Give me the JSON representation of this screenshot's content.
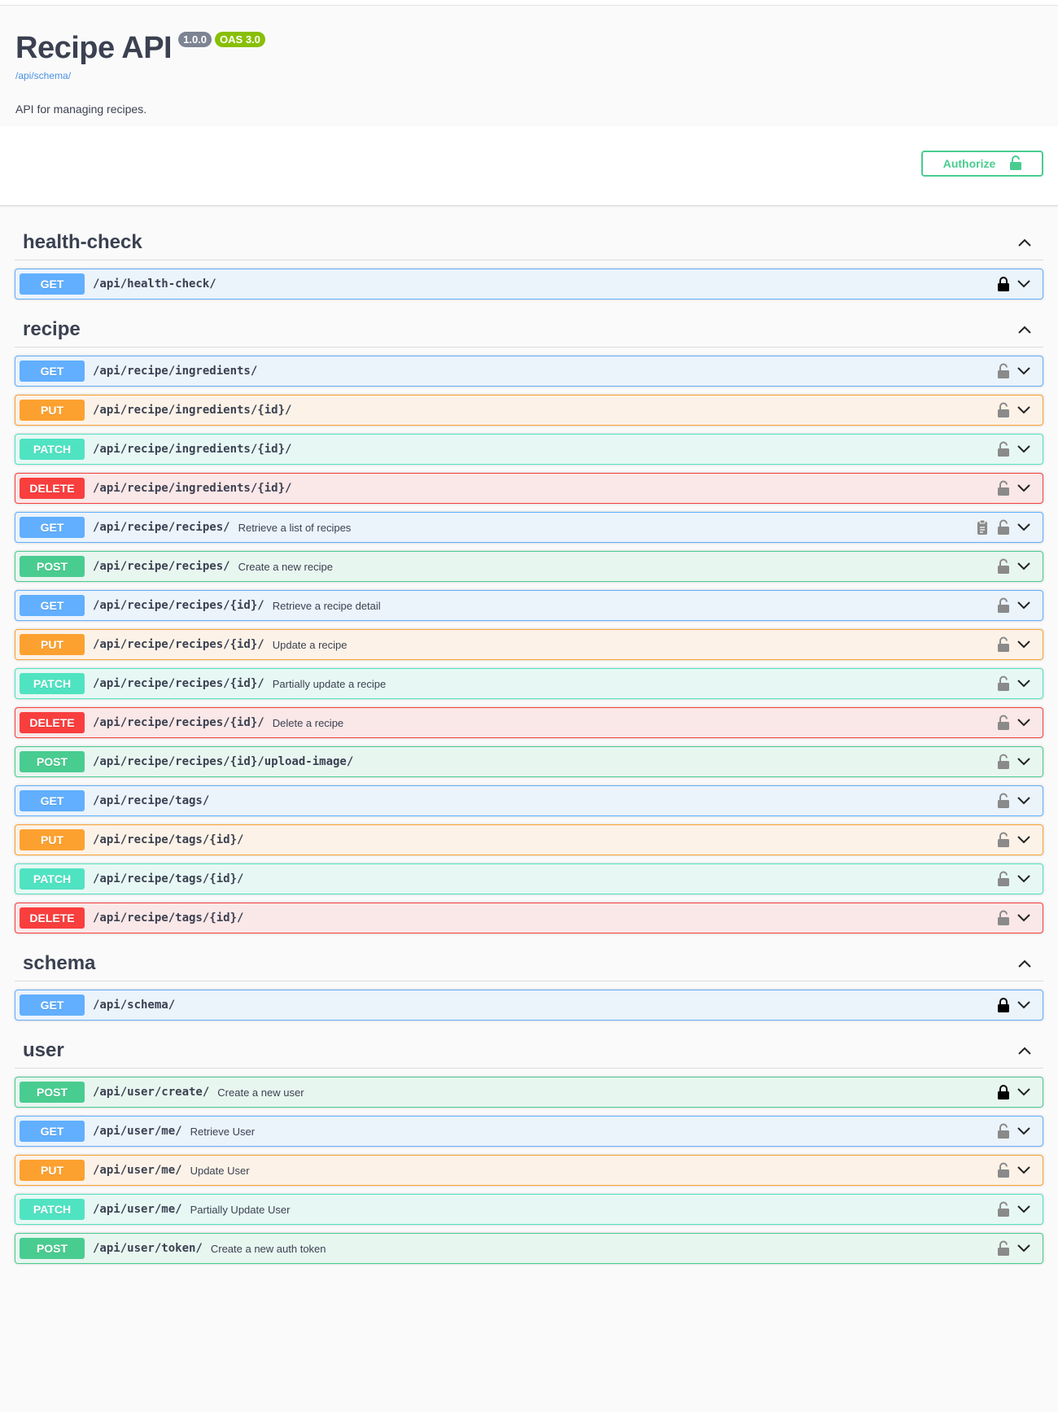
{
  "info": {
    "title": "Recipe API",
    "version": "1.0.0",
    "oas": "OAS 3.0",
    "url": "/api/schema/",
    "description": "API for managing recipes."
  },
  "authorize_label": "Authorize",
  "colors": {
    "get": "#61affe",
    "put": "#fca130",
    "post": "#49cc90",
    "patch": "#50e3c2",
    "delete": "#f93e3e"
  },
  "tags": [
    {
      "name": "health-check",
      "ops": [
        {
          "method": "GET",
          "cls": "get",
          "path": "/api/health-check/",
          "summary": "",
          "locked": true
        }
      ]
    },
    {
      "name": "recipe",
      "ops": [
        {
          "method": "GET",
          "cls": "get",
          "path": "/api/recipe/ingredients/",
          "summary": "",
          "locked": false
        },
        {
          "method": "PUT",
          "cls": "put",
          "path": "/api/recipe/ingredients/{id}/",
          "summary": "",
          "locked": false
        },
        {
          "method": "PATCH",
          "cls": "patch",
          "path": "/api/recipe/ingredients/{id}/",
          "summary": "",
          "locked": false
        },
        {
          "method": "DELETE",
          "cls": "delete",
          "path": "/api/recipe/ingredients/{id}/",
          "summary": "",
          "locked": false
        },
        {
          "method": "GET",
          "cls": "get",
          "path": "/api/recipe/recipes/",
          "summary": "Retrieve a list of recipes",
          "locked": false,
          "copy": true
        },
        {
          "method": "POST",
          "cls": "post",
          "path": "/api/recipe/recipes/",
          "summary": "Create a new recipe",
          "locked": false
        },
        {
          "method": "GET",
          "cls": "get",
          "path": "/api/recipe/recipes/{id}/",
          "summary": "Retrieve a recipe detail",
          "locked": false
        },
        {
          "method": "PUT",
          "cls": "put",
          "path": "/api/recipe/recipes/{id}/",
          "summary": "Update a recipe",
          "locked": false
        },
        {
          "method": "PATCH",
          "cls": "patch",
          "path": "/api/recipe/recipes/{id}/",
          "summary": "Partially update a recipe",
          "locked": false
        },
        {
          "method": "DELETE",
          "cls": "delete",
          "path": "/api/recipe/recipes/{id}/",
          "summary": "Delete a recipe",
          "locked": false
        },
        {
          "method": "POST",
          "cls": "post",
          "path": "/api/recipe/recipes/{id}/upload-image/",
          "summary": "",
          "locked": false
        },
        {
          "method": "GET",
          "cls": "get",
          "path": "/api/recipe/tags/",
          "summary": "",
          "locked": false
        },
        {
          "method": "PUT",
          "cls": "put",
          "path": "/api/recipe/tags/{id}/",
          "summary": "",
          "locked": false
        },
        {
          "method": "PATCH",
          "cls": "patch",
          "path": "/api/recipe/tags/{id}/",
          "summary": "",
          "locked": false
        },
        {
          "method": "DELETE",
          "cls": "delete",
          "path": "/api/recipe/tags/{id}/",
          "summary": "",
          "locked": false
        }
      ]
    },
    {
      "name": "schema",
      "ops": [
        {
          "method": "GET",
          "cls": "get",
          "path": "/api/schema/",
          "summary": "",
          "locked": true
        }
      ]
    },
    {
      "name": "user",
      "ops": [
        {
          "method": "POST",
          "cls": "post",
          "path": "/api/user/create/",
          "summary": "Create a new user",
          "locked": true
        },
        {
          "method": "GET",
          "cls": "get",
          "path": "/api/user/me/",
          "summary": "Retrieve User",
          "locked": false
        },
        {
          "method": "PUT",
          "cls": "put",
          "path": "/api/user/me/",
          "summary": "Update User",
          "locked": false
        },
        {
          "method": "PATCH",
          "cls": "patch",
          "path": "/api/user/me/",
          "summary": "Partially Update User",
          "locked": false
        },
        {
          "method": "POST",
          "cls": "post",
          "path": "/api/user/token/",
          "summary": "Create a new auth token",
          "locked": false
        }
      ]
    }
  ]
}
